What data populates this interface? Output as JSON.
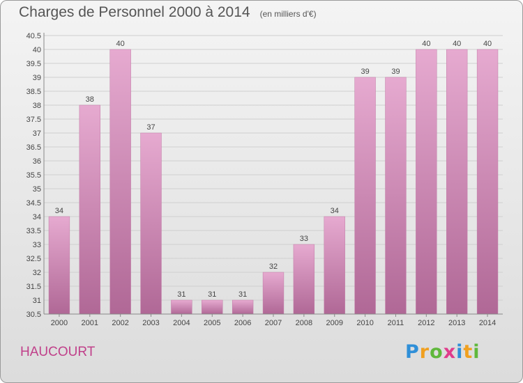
{
  "chart_data": {
    "type": "bar",
    "title": "Charges de Personnel 2000 à 2014",
    "subtitle": "(en milliers d'€)",
    "categories": [
      "2000",
      "2001",
      "2002",
      "2003",
      "2004",
      "2005",
      "2006",
      "2007",
      "2008",
      "2009",
      "2010",
      "2011",
      "2012",
      "2013",
      "2014"
    ],
    "values": [
      34,
      38,
      40,
      37,
      31,
      31,
      31,
      32,
      33,
      34,
      39,
      39,
      40,
      40,
      40
    ],
    "ylim": [
      30.5,
      40.5
    ],
    "yticks": [
      "30.5",
      "31",
      "31.5",
      "32",
      "32.5",
      "33",
      "33.5",
      "34",
      "34.5",
      "35",
      "35.5",
      "36",
      "36.5",
      "37",
      "37.5",
      "38",
      "38.5",
      "39",
      "39.5",
      "40",
      "40.5"
    ],
    "grid": true,
    "bar_color": "#d07fb0"
  },
  "commune": "HAUCOURT",
  "logo_text": [
    "P",
    "r",
    "o",
    "x",
    "i",
    "t",
    "i"
  ]
}
